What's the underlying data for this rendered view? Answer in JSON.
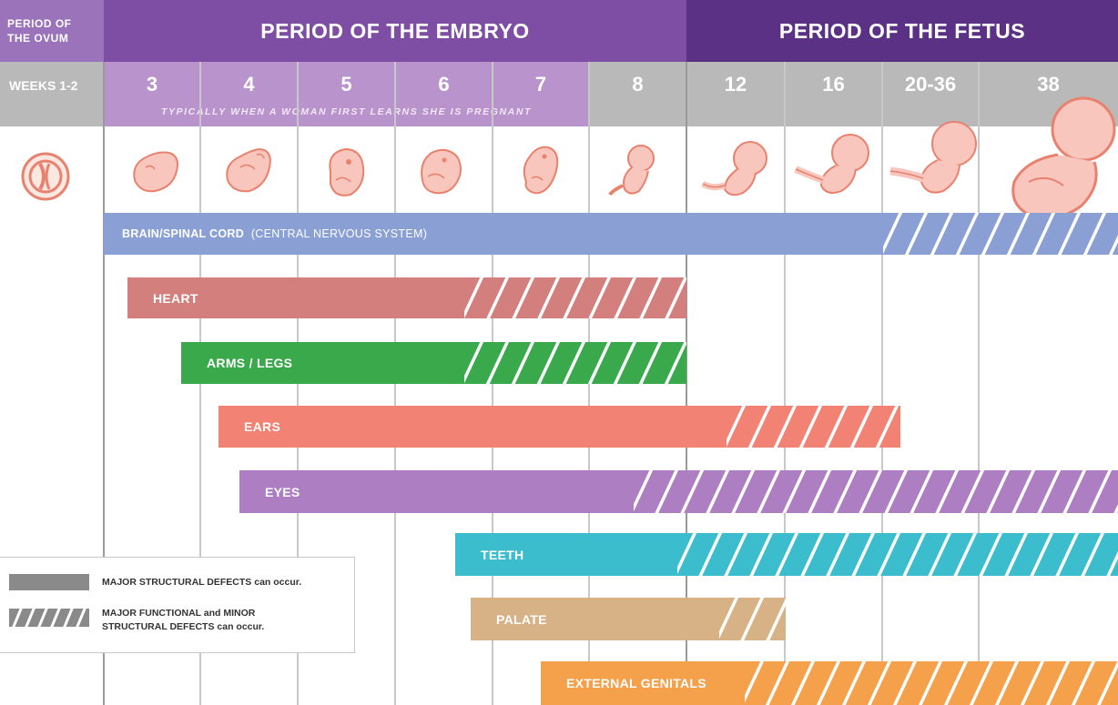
{
  "header": {
    "ovum_period_label": "PERIOD OF THE OVUM",
    "embryo_period_label": "PERIOD OF THE EMBRYO",
    "fetus_period_label": "PERIOD OF THE FETUS",
    "weeks_label": "WEEKS 1-2",
    "pregnancy_note": "TYPICALLY WHEN A WOMAN FIRST LEARNS SHE IS PREGNANT"
  },
  "weeks": [
    "3",
    "4",
    "5",
    "6",
    "7",
    "8",
    "12",
    "16",
    "20-36",
    "38"
  ],
  "bars": [
    {
      "label": "BRAIN/SPINAL CORD",
      "sublabel": "(CENTRAL NERVOUS SYSTEM)",
      "color": "#8aa0d4"
    },
    {
      "label": "HEART",
      "color": "#d37f7d"
    },
    {
      "label": "ARMS / LEGS",
      "color": "#3aa94b"
    },
    {
      "label": "EARS",
      "color": "#f28274"
    },
    {
      "label": "EYES",
      "color": "#ad7ec1"
    },
    {
      "label": "TEETH",
      "color": "#3bbdcd"
    },
    {
      "label": "PALATE",
      "color": "#d7b287"
    },
    {
      "label": "EXTERNAL GENITALS",
      "color": "#f5a04a"
    }
  ],
  "legend": {
    "major_label": "MAJOR STRUCTURAL DEFECTS can occur.",
    "minor_line1": "MAJOR FUNCTIONAL and MINOR",
    "minor_line2": "STRUCTURAL DEFECTS can occur."
  },
  "colors": {
    "embryo_header": "#7d4ea3",
    "fetus_header": "#5b3186",
    "ovum_header": "#9a73bb",
    "embryo_weeks": "#b893cc",
    "grey_weeks": "#b9b9b9",
    "embryo_figure": "#f8c6bc",
    "embryo_outline": "#e8826f"
  },
  "icons": [
    "ovum-icon",
    "embryo-icon"
  ]
}
